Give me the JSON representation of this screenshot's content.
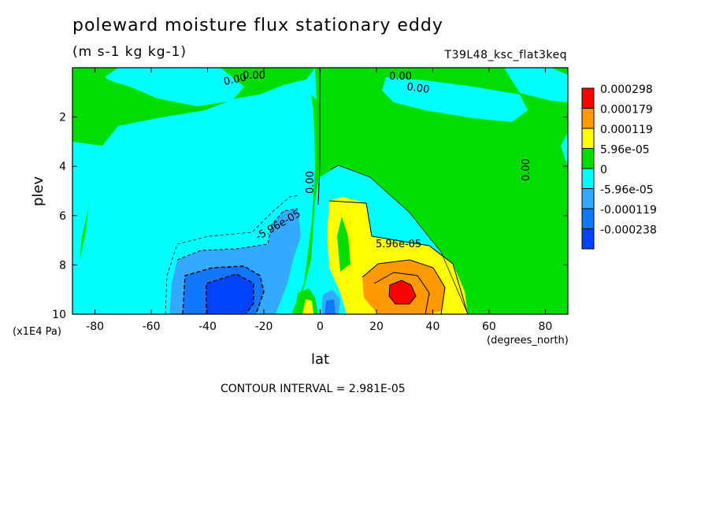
{
  "chart_data": {
    "type": "heatmap",
    "title": "poleward moisture flux stationary eddy",
    "units": "(m s-1 kg kg-1)",
    "run_id": "T39L48_ksc_flat3keq",
    "xlabel": "lat",
    "ylabel": "plev",
    "x_unit": "(degrees_north)",
    "y_unit": "(x1E4 Pa)",
    "contour_interval_text": "CONTOUR INTERVAL = 2.981E-05",
    "xlim": [
      -88,
      88
    ],
    "ylim": [
      10,
      0
    ],
    "x_ticks": [
      -80,
      -60,
      -40,
      -20,
      0,
      20,
      40,
      60,
      80
    ],
    "y_ticks": [
      2,
      4,
      6,
      8,
      10
    ],
    "legend": [
      {
        "label": "0.000298",
        "color": "#ff0000"
      },
      {
        "label": "0.000179",
        "color": "#ff9900"
      },
      {
        "label": "0.000119",
        "color": "#ffff00"
      },
      {
        "label": "5.96e-05",
        "color": "#00dd00"
      },
      {
        "label": "0",
        "color": "#00ffff"
      },
      {
        "label": "-5.96e-05",
        "color": "#33aaff"
      },
      {
        "label": "-0.000119",
        "color": "#1177ff"
      },
      {
        "label": "-0.000238",
        "color": "#0044ff"
      }
    ],
    "contour_labels": [
      "0.00",
      "0.00",
      "0.00",
      "0.00",
      "0.00",
      "0.00",
      "-5.96e-05",
      "5.96e-05"
    ],
    "features": [
      {
        "kind": "max",
        "lat": 30,
        "plev": 9.1,
        "value_range": "0.000179 to 0.000298"
      },
      {
        "kind": "min",
        "lat": -35,
        "plev": 9.3,
        "value_range": "-0.000238 to -0.000119"
      },
      {
        "kind": "positive_region",
        "lat_range": [
          5,
          50
        ],
        "plev_range": [
          5.5,
          10
        ]
      },
      {
        "kind": "negative_region",
        "lat_range": [
          -55,
          -5
        ],
        "plev_range": [
          6,
          10
        ]
      }
    ]
  }
}
